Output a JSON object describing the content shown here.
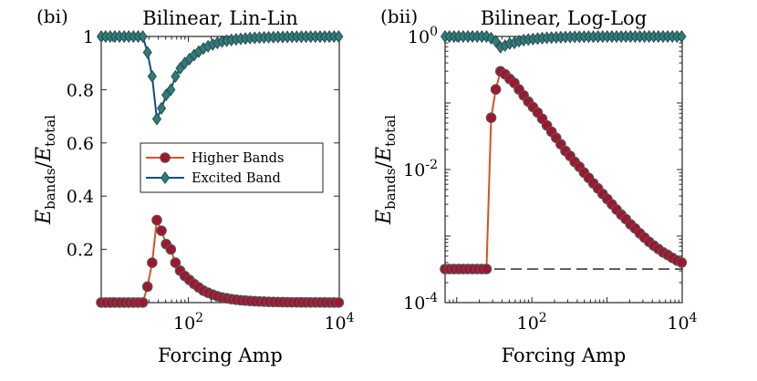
{
  "chart_data": [
    {
      "panel_label": "(bi)",
      "title": "Bilinear, Lin-Lin",
      "type": "line",
      "xscale": "log",
      "yscale": "linear",
      "xlabel": "Forcing Amp",
      "ylabel": {
        "base": "E",
        "sub1": "bands",
        "sep": "/",
        "base2": "E",
        "sub2": "total"
      },
      "xlim": [
        7,
        10000
      ],
      "ylim": [
        0,
        1.0
      ],
      "xticks": [
        100,
        10000
      ],
      "xtick_labels": [
        {
          "base": "10",
          "exp": "2"
        },
        {
          "base": "10",
          "exp": "4"
        }
      ],
      "yticks": [
        0.2,
        0.4,
        0.6,
        0.8,
        1
      ],
      "ytick_labels": [
        "0.2",
        "0.4",
        "0.6",
        "0.8",
        "1"
      ],
      "legend": {
        "position": "center-right",
        "entries": [
          "Higher Bands",
          "Excited Band"
        ]
      },
      "x": [
        7.0,
        8.0,
        9.2,
        10.6,
        12.2,
        14.1,
        16.2,
        18.7,
        21.6,
        24.9,
        28.7,
        33.1,
        38.2,
        44.0,
        50.7,
        58.5,
        67.4,
        77.7,
        89.6,
        103.3,
        119.1,
        137.3,
        158.3,
        182.5,
        210.4,
        242.6,
        279.7,
        322.5,
        371.8,
        428.7,
        494.3,
        569.9,
        657.1,
        757.6,
        873.5,
        1007.1,
        1161.2,
        1338.8,
        1543.6,
        1779.7,
        2052.0,
        2365.9,
        2727.8,
        3145.0,
        3626.1,
        4180.9,
        4820.4,
        5557.8,
        6408.0,
        7388.3,
        8518.5,
        9821.7
      ],
      "series": [
        {
          "name": "Higher Bands",
          "color": "#d95319",
          "marker_fill": "#a2142f",
          "marker": "circle",
          "values": [
            0.0003,
            0.0003,
            0.0003,
            0.0003,
            0.0003,
            0.0003,
            0.0003,
            0.0003,
            0.0003,
            0.0003,
            0.06,
            0.15,
            0.31,
            0.27,
            0.22,
            0.2,
            0.15,
            0.12,
            0.1,
            0.085,
            0.07,
            0.057,
            0.045,
            0.037,
            0.03,
            0.024,
            0.019,
            0.016,
            0.013,
            0.011,
            0.009,
            0.0075,
            0.0062,
            0.0052,
            0.0043,
            0.0036,
            0.003,
            0.0025,
            0.0021,
            0.0018,
            0.0015,
            0.0013,
            0.0011,
            0.00095,
            0.00082,
            0.00072,
            0.00064,
            0.00057,
            0.00052,
            0.00047,
            0.00043,
            0.00039
          ]
        },
        {
          "name": "Excited Band",
          "color": "#0e4d86",
          "marker_fill": "#2e7d78",
          "marker": "diamond",
          "values": [
            0.9997,
            0.9997,
            0.9997,
            0.9997,
            0.9997,
            0.9997,
            0.9997,
            0.9997,
            0.9997,
            0.9997,
            0.94,
            0.85,
            0.69,
            0.73,
            0.78,
            0.8,
            0.85,
            0.88,
            0.9,
            0.915,
            0.93,
            0.943,
            0.955,
            0.963,
            0.97,
            0.976,
            0.981,
            0.984,
            0.987,
            0.989,
            0.991,
            0.9925,
            0.9938,
            0.9948,
            0.9957,
            0.9964,
            0.997,
            0.9975,
            0.9979,
            0.9982,
            0.9985,
            0.9987,
            0.9989,
            0.99905,
            0.99918,
            0.99928,
            0.99936,
            0.99943,
            0.99948,
            0.99953,
            0.99957,
            0.99961
          ]
        }
      ]
    },
    {
      "panel_label": "(bii)",
      "title": "Bilinear, Log-Log",
      "type": "line",
      "xscale": "log",
      "yscale": "log",
      "xlabel": "Forcing Amp",
      "ylabel": {
        "base": "E",
        "sub1": "bands",
        "sep": "/",
        "base2": "E",
        "sub2": "total"
      },
      "xlim": [
        7,
        10000
      ],
      "ylim": [
        0.0001,
        1
      ],
      "xticks": [
        100,
        10000
      ],
      "xtick_labels": [
        {
          "base": "10",
          "exp": "2"
        },
        {
          "base": "10",
          "exp": "4"
        }
      ],
      "yticks": [
        0.0001,
        0.01,
        1
      ],
      "ytick_labels": [
        {
          "base": "10",
          "exp": "-4"
        },
        {
          "base": "10",
          "exp": "-2"
        },
        {
          "base": "10",
          "exp": "0"
        }
      ],
      "reference_line": {
        "style": "dashed",
        "y": 0.00032
      },
      "x": [
        7.0,
        8.0,
        9.2,
        10.6,
        12.2,
        14.1,
        16.2,
        18.7,
        21.6,
        24.9,
        28.7,
        33.1,
        38.2,
        44.0,
        50.7,
        58.5,
        67.4,
        77.7,
        89.6,
        103.3,
        119.1,
        137.3,
        158.3,
        182.5,
        210.4,
        242.6,
        279.7,
        322.5,
        371.8,
        428.7,
        494.3,
        569.9,
        657.1,
        757.6,
        873.5,
        1007.1,
        1161.2,
        1338.8,
        1543.6,
        1779.7,
        2052.0,
        2365.9,
        2727.8,
        3145.0,
        3626.1,
        4180.9,
        4820.4,
        5557.8,
        6408.0,
        7388.3,
        8518.5,
        9821.7
      ],
      "series": [
        {
          "name": "Higher Bands",
          "color": "#d95319",
          "marker_fill": "#a2142f",
          "marker": "circle",
          "values": [
            0.00032,
            0.00032,
            0.00032,
            0.00032,
            0.00032,
            0.00032,
            0.00032,
            0.00032,
            0.00032,
            0.00032,
            0.06,
            0.16,
            0.3,
            0.27,
            0.23,
            0.2,
            0.16,
            0.13,
            0.105,
            0.087,
            0.072,
            0.058,
            0.046,
            0.037,
            0.03,
            0.024,
            0.019,
            0.016,
            0.013,
            0.011,
            0.009,
            0.0075,
            0.0062,
            0.0052,
            0.0043,
            0.0036,
            0.003,
            0.0025,
            0.0021,
            0.0018,
            0.0015,
            0.0013,
            0.0011,
            0.00095,
            0.00082,
            0.00072,
            0.00064,
            0.00057,
            0.00052,
            0.00047,
            0.00043,
            0.0004
          ]
        },
        {
          "name": "Excited Band",
          "color": "#0e4d86",
          "marker_fill": "#2e7d78",
          "marker": "diamond",
          "values": [
            0.9997,
            0.9997,
            0.9997,
            0.9997,
            0.9997,
            0.9997,
            0.9997,
            0.9997,
            0.9997,
            0.9997,
            0.94,
            0.85,
            0.69,
            0.73,
            0.78,
            0.8,
            0.85,
            0.88,
            0.9,
            0.915,
            0.93,
            0.943,
            0.955,
            0.963,
            0.97,
            0.976,
            0.981,
            0.984,
            0.987,
            0.989,
            0.991,
            0.9925,
            0.9938,
            0.9948,
            0.9957,
            0.9964,
            0.997,
            0.9975,
            0.9979,
            0.9982,
            0.9985,
            0.9987,
            0.9989,
            0.99905,
            0.99918,
            0.99928,
            0.99936,
            0.99943,
            0.99948,
            0.99953,
            0.99957,
            0.99961
          ]
        }
      ]
    }
  ]
}
